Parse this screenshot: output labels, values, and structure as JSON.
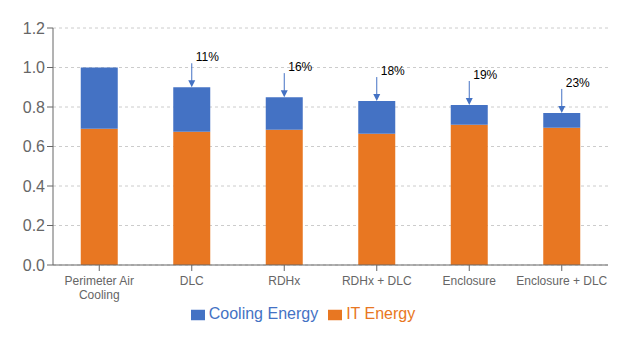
{
  "chart_data": {
    "type": "bar",
    "stacked": true,
    "categories": [
      "Perimeter Air\nCooling",
      "DLC",
      "RDHx",
      "RDHx + DLC",
      "Enclosure",
      "Enclosure + DLC"
    ],
    "series": [
      {
        "name": "IT Energy",
        "color": "#E87722",
        "values": [
          0.69,
          0.675,
          0.685,
          0.665,
          0.71,
          0.695
        ]
      },
      {
        "name": "Cooling Energy",
        "color": "#4472C4",
        "values": [
          0.31,
          0.225,
          0.165,
          0.165,
          0.1,
          0.075
        ]
      }
    ],
    "annotations": [
      {
        "category": "DLC",
        "text": "11%"
      },
      {
        "category": "RDHx",
        "text": "16%"
      },
      {
        "category": "RDHx + DLC",
        "text": "18%"
      },
      {
        "category": "Enclosure",
        "text": "19%"
      },
      {
        "category": "Enclosure + DLC",
        "text": "23%"
      }
    ],
    "ylim": [
      0,
      1.2
    ],
    "yticks": [
      {
        "value": 0,
        "label": "0.0"
      },
      0.2,
      0.4,
      0.6,
      0.8,
      {
        "value": 1,
        "label": "1.0"
      },
      1.2
    ],
    "grid": true,
    "legend": "bottom"
  }
}
